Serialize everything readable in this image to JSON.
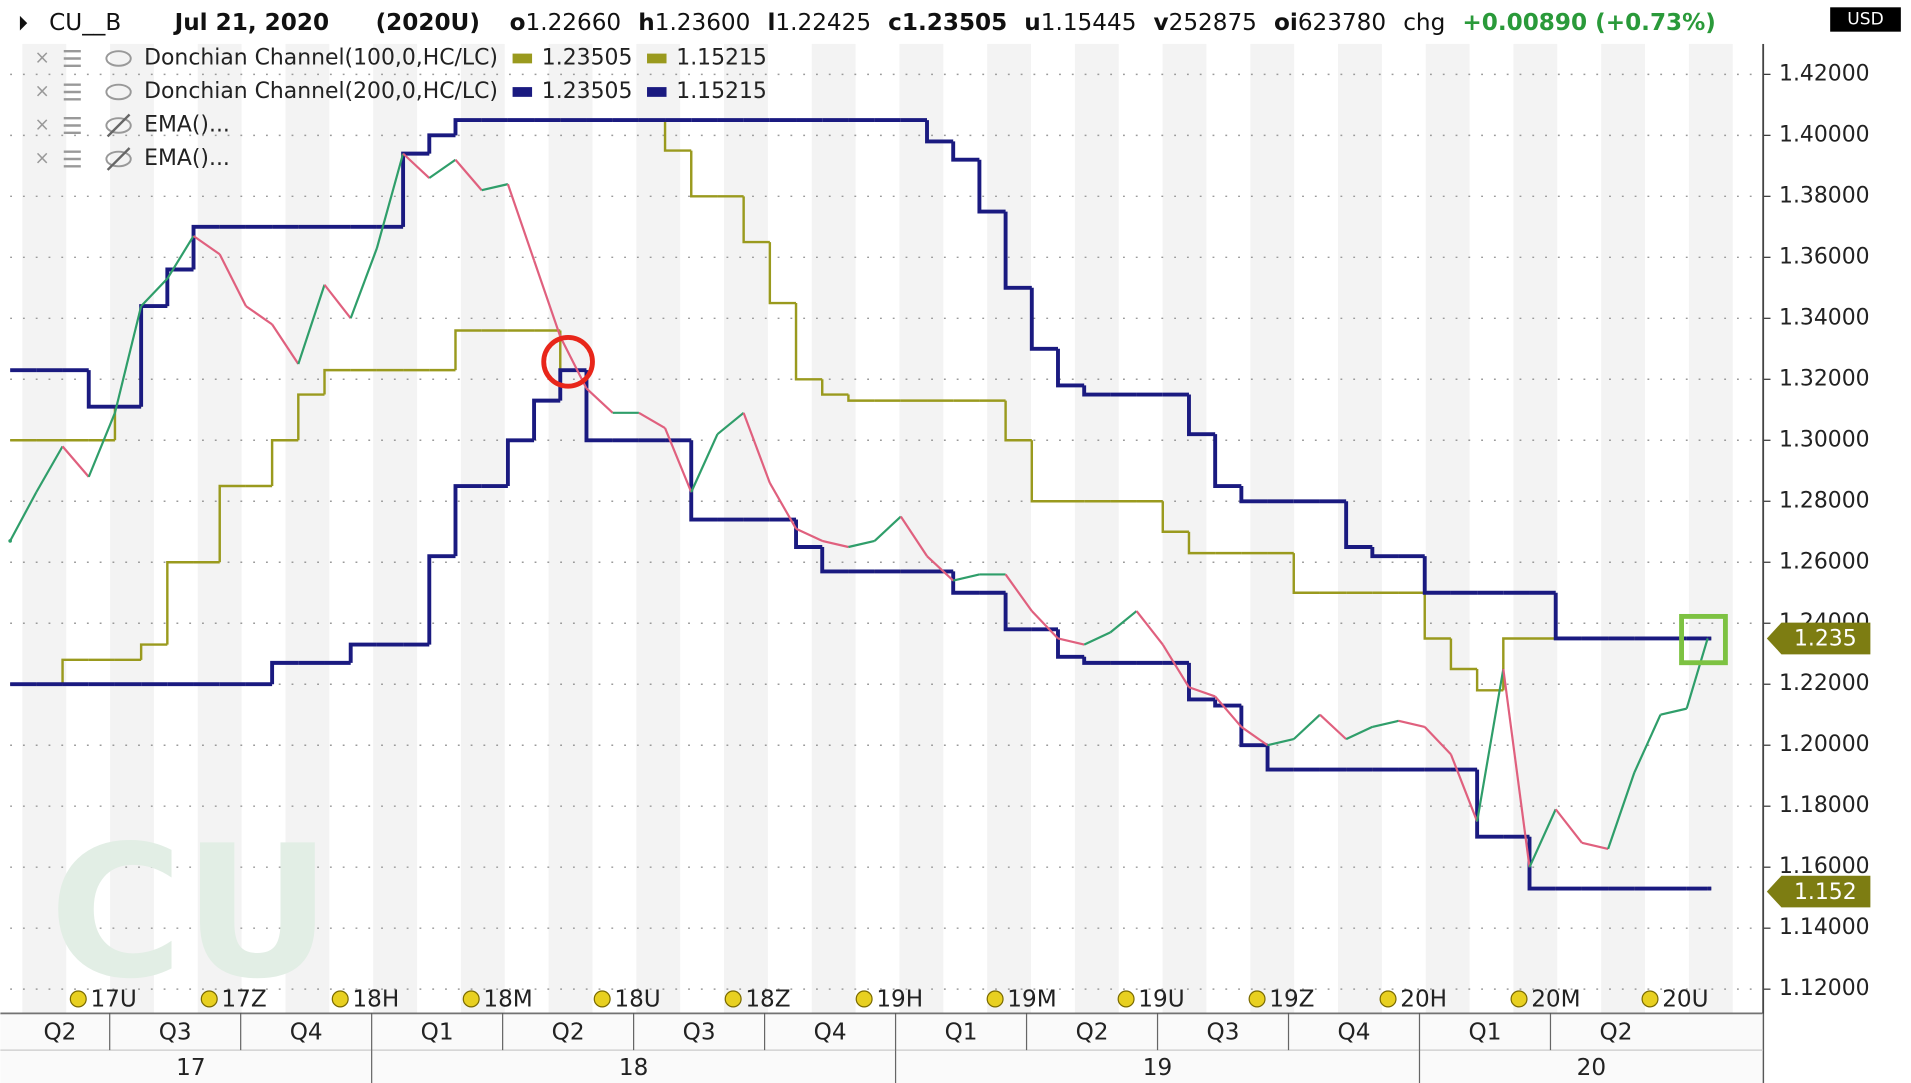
{
  "header": {
    "date": "Jul 21, 2020",
    "contract": "(2020U)",
    "fields": [
      {
        "key": "o",
        "value": "1.22660"
      },
      {
        "key": "h",
        "value": "1.23600"
      },
      {
        "key": "l",
        "value": "1.22425"
      },
      {
        "key": "c",
        "value": "1.23505"
      },
      {
        "key": "u",
        "value": "1.15445"
      },
      {
        "key": "v",
        "value": "252875"
      },
      {
        "key": "oi",
        "value": "623780"
      }
    ],
    "chg_label": "chg",
    "chg": "+0.00890 (+0.73%)",
    "currency": "USD"
  },
  "chart_data": {
    "type": "line",
    "watermark": "CU",
    "x": [
      2017.31,
      2017.36,
      2017.41,
      2017.46,
      2017.51,
      2017.56,
      2017.61,
      2017.66,
      2017.71,
      2017.76,
      2017.81,
      2017.86,
      2017.91,
      2017.96,
      2018.01,
      2018.06,
      2018.11,
      2018.16,
      2018.21,
      2018.26,
      2018.31,
      2018.36,
      2018.41,
      2018.46,
      2018.51,
      2018.56,
      2018.61,
      2018.66,
      2018.71,
      2018.76,
      2018.81,
      2018.86,
      2018.91,
      2018.96,
      2019.01,
      2019.06,
      2019.11,
      2019.16,
      2019.21,
      2019.26,
      2019.31,
      2019.36,
      2019.41,
      2019.46,
      2019.51,
      2019.56,
      2019.61,
      2019.66,
      2019.71,
      2019.76,
      2019.81,
      2019.86,
      2019.91,
      2019.96,
      2020.01,
      2020.06,
      2020.11,
      2020.16,
      2020.21,
      2020.26,
      2020.31,
      2020.36,
      2020.41,
      2020.46,
      2020.51,
      2020.55
    ],
    "series": [
      {
        "name": "CU__B",
        "up_color": "#2f9e6a",
        "down_color": "#e0607e",
        "values": [
          1.267,
          1.283,
          1.298,
          1.288,
          1.309,
          1.344,
          1.353,
          1.367,
          1.361,
          1.344,
          1.338,
          1.325,
          1.351,
          1.34,
          1.363,
          1.394,
          1.386,
          1.392,
          1.382,
          1.384,
          1.359,
          1.334,
          1.317,
          1.309,
          1.309,
          1.304,
          1.283,
          1.302,
          1.309,
          1.286,
          1.271,
          1.267,
          1.265,
          1.267,
          1.275,
          1.262,
          1.254,
          1.256,
          1.256,
          1.244,
          1.235,
          1.233,
          1.237,
          1.244,
          1.233,
          1.219,
          1.216,
          1.206,
          1.2,
          1.202,
          1.21,
          1.202,
          1.206,
          1.208,
          1.206,
          1.197,
          1.175,
          1.225,
          1.16,
          1.179,
          1.168,
          1.166,
          1.191,
          1.21,
          1.212,
          1.235
        ]
      }
    ],
    "channels": [
      {
        "name": "Donchian Channel(100,0,HC/LC)",
        "color": "#9a9a1e",
        "width": 2,
        "legend_values": [
          "1.23505",
          "1.15215"
        ],
        "upper": [
          1.3,
          1.3,
          1.3,
          1.3,
          1.311,
          1.344,
          1.356,
          1.37,
          1.37,
          1.37,
          1.37,
          1.37,
          1.37,
          1.37,
          1.37,
          1.394,
          1.4,
          1.405,
          1.405,
          1.405,
          1.405,
          1.405,
          1.405,
          1.405,
          1.405,
          1.395,
          1.38,
          1.38,
          1.365,
          1.345,
          1.32,
          1.315,
          1.313,
          1.313,
          1.313,
          1.313,
          1.313,
          1.313,
          1.3,
          1.28,
          1.28,
          1.28,
          1.28,
          1.28,
          1.27,
          1.263,
          1.263,
          1.263,
          1.263,
          1.25,
          1.25,
          1.25,
          1.25,
          1.25,
          1.235,
          1.225,
          1.218,
          1.235,
          1.235,
          1.235,
          1.235,
          1.235,
          1.235,
          1.235,
          1.235,
          1.235
        ],
        "lower": [
          1.22,
          1.22,
          1.228,
          1.228,
          1.228,
          1.233,
          1.26,
          1.26,
          1.285,
          1.285,
          1.3,
          1.315,
          1.323,
          1.323,
          1.323,
          1.323,
          1.323,
          1.336,
          1.336,
          1.336,
          1.336,
          1.323,
          1.3,
          1.3,
          1.3,
          1.3,
          1.274,
          1.274,
          1.274,
          1.274,
          1.265,
          1.257,
          1.257,
          1.257,
          1.257,
          1.257,
          1.25,
          1.25,
          1.238,
          1.238,
          1.229,
          1.227,
          1.227,
          1.227,
          1.227,
          1.215,
          1.213,
          1.2,
          1.192,
          1.192,
          1.192,
          1.192,
          1.192,
          1.192,
          1.192,
          1.192,
          1.17,
          1.17,
          1.153,
          1.153,
          1.153,
          1.153,
          1.153,
          1.153,
          1.153,
          1.153
        ]
      },
      {
        "name": "Donchian Channel(200,0,HC/LC)",
        "color": "#1a1a80",
        "width": 3.2,
        "legend_values": [
          "1.23505",
          "1.15215"
        ],
        "upper": [
          1.323,
          1.323,
          1.323,
          1.311,
          1.311,
          1.344,
          1.356,
          1.37,
          1.37,
          1.37,
          1.37,
          1.37,
          1.37,
          1.37,
          1.37,
          1.394,
          1.4,
          1.405,
          1.405,
          1.405,
          1.405,
          1.405,
          1.405,
          1.405,
          1.405,
          1.405,
          1.405,
          1.405,
          1.405,
          1.405,
          1.405,
          1.405,
          1.405,
          1.405,
          1.405,
          1.398,
          1.392,
          1.375,
          1.35,
          1.33,
          1.318,
          1.315,
          1.315,
          1.315,
          1.315,
          1.302,
          1.285,
          1.28,
          1.28,
          1.28,
          1.28,
          1.265,
          1.262,
          1.262,
          1.25,
          1.25,
          1.25,
          1.25,
          1.25,
          1.235,
          1.235,
          1.235,
          1.235,
          1.235,
          1.235,
          1.235
        ],
        "lower": [
          1.22,
          1.22,
          1.22,
          1.22,
          1.22,
          1.22,
          1.22,
          1.22,
          1.22,
          1.22,
          1.227,
          1.227,
          1.227,
          1.233,
          1.233,
          1.233,
          1.262,
          1.285,
          1.285,
          1.3,
          1.313,
          1.323,
          1.3,
          1.3,
          1.3,
          1.3,
          1.274,
          1.274,
          1.274,
          1.274,
          1.265,
          1.257,
          1.257,
          1.257,
          1.257,
          1.257,
          1.25,
          1.25,
          1.238,
          1.238,
          1.229,
          1.227,
          1.227,
          1.227,
          1.227,
          1.215,
          1.213,
          1.2,
          1.192,
          1.192,
          1.192,
          1.192,
          1.192,
          1.192,
          1.192,
          1.192,
          1.17,
          1.17,
          1.153,
          1.153,
          1.153,
          1.153,
          1.153,
          1.153,
          1.153,
          1.153
        ]
      }
    ],
    "hidden_studies": [
      "EMA()...",
      "EMA()..."
    ],
    "xlim": [
      2017.31,
      2020.656
    ],
    "xticks": [
      {
        "value": 2017.25,
        "label": "Q2"
      },
      {
        "value": 2017.5,
        "label": "Q3"
      },
      {
        "value": 2017.75,
        "label": "Q4"
      },
      {
        "value": 2018,
        "label": "Q1"
      },
      {
        "value": 2018.25,
        "label": "Q2"
      },
      {
        "value": 2018.5,
        "label": "Q3"
      },
      {
        "value": 2018.75,
        "label": "Q4"
      },
      {
        "value": 2019,
        "label": "Q1"
      },
      {
        "value": 2019.25,
        "label": "Q2"
      },
      {
        "value": 2019.5,
        "label": "Q3"
      },
      {
        "value": 2019.75,
        "label": "Q4"
      },
      {
        "value": 2020,
        "label": "Q1"
      },
      {
        "value": 2020.25,
        "label": "Q2"
      }
    ],
    "year_ticks": [
      {
        "value": 2017,
        "label": "17"
      },
      {
        "value": 2018,
        "label": "18"
      },
      {
        "value": 2019,
        "label": "19"
      },
      {
        "value": 2020,
        "label": "20"
      }
    ],
    "contracts": [
      {
        "x": 2017.44,
        "label": "17U"
      },
      {
        "x": 2017.69,
        "label": "17Z"
      },
      {
        "x": 2017.94,
        "label": "18H"
      },
      {
        "x": 2018.19,
        "label": "18M"
      },
      {
        "x": 2018.44,
        "label": "18U"
      },
      {
        "x": 2018.69,
        "label": "18Z"
      },
      {
        "x": 2018.94,
        "label": "19H"
      },
      {
        "x": 2019.19,
        "label": "19M"
      },
      {
        "x": 2019.44,
        "label": "19U"
      },
      {
        "x": 2019.69,
        "label": "19Z"
      },
      {
        "x": 2019.94,
        "label": "20H"
      },
      {
        "x": 2020.19,
        "label": "20M"
      },
      {
        "x": 2020.44,
        "label": "20U"
      }
    ],
    "ylim": [
      1.112,
      1.43
    ],
    "yticks": [
      {
        "value": 1.12,
        "label": "1.12000"
      },
      {
        "value": 1.14,
        "label": "1.14000"
      },
      {
        "value": 1.16,
        "label": "1.16000"
      },
      {
        "value": 1.18,
        "label": "1.18000"
      },
      {
        "value": 1.2,
        "label": "1.20000"
      },
      {
        "value": 1.22,
        "label": "1.22000"
      },
      {
        "value": 1.24,
        "label": "1.24000"
      },
      {
        "value": 1.26,
        "label": "1.26000"
      },
      {
        "value": 1.28,
        "label": "1.28000"
      },
      {
        "value": 1.3,
        "label": "1.30000"
      },
      {
        "value": 1.32,
        "label": "1.32000"
      },
      {
        "value": 1.34,
        "label": "1.34000"
      },
      {
        "value": 1.36,
        "label": "1.36000"
      },
      {
        "value": 1.38,
        "label": "1.38000"
      },
      {
        "value": 1.4,
        "label": "1.40000"
      },
      {
        "value": 1.42,
        "label": "1.42000"
      }
    ],
    "price_tags": [
      1.235,
      1.152
    ],
    "tag_color": "#7d7d12",
    "grid": true
  }
}
